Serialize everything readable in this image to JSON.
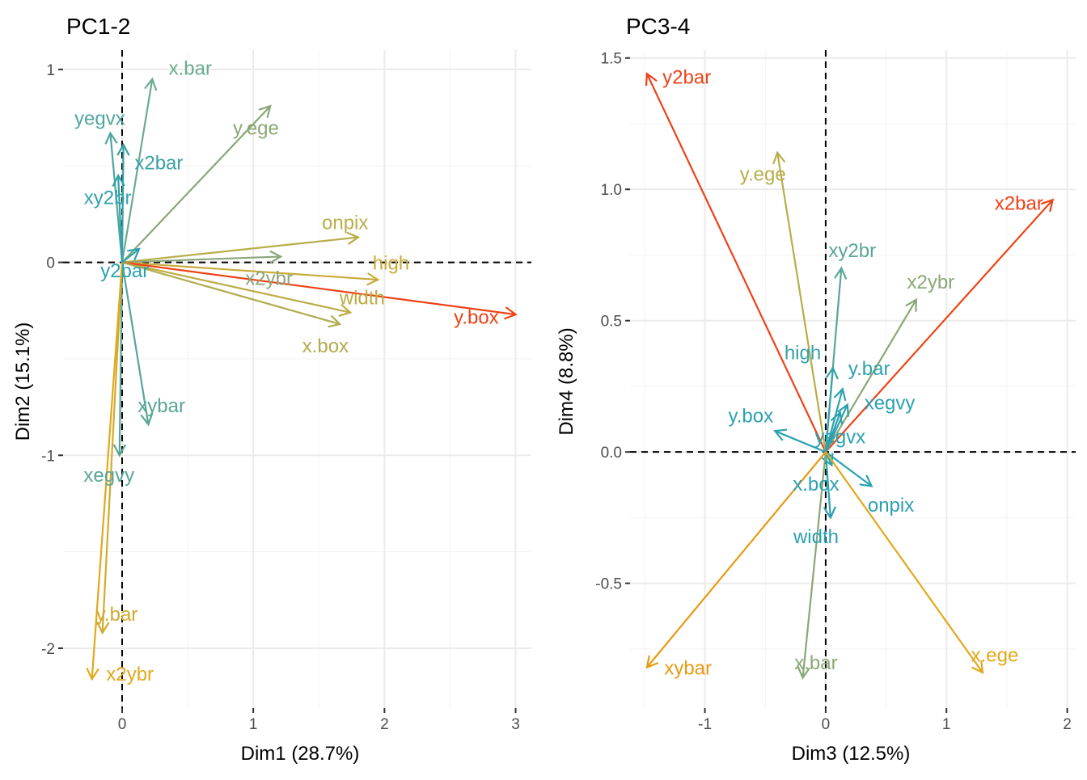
{
  "chart_data": [
    {
      "type": "biplot",
      "title": "PC1-2",
      "xlabel": "Dim1 (28.7%)",
      "ylabel": "Dim2 (15.1%)",
      "xlim": [
        -0.45,
        3.12
      ],
      "ylim": [
        -2.31,
        1.1
      ],
      "xticks": [
        0,
        1,
        2,
        3
      ],
      "xtick_labels": [
        "0",
        "1",
        "2",
        "3"
      ],
      "yticks": [
        -2,
        -1,
        0,
        1
      ],
      "ytick_labels": [
        "-2",
        "-1",
        "0",
        "1"
      ],
      "grid": true,
      "variables": [
        {
          "label": "x.bar",
          "x": 0.23,
          "y": 0.95,
          "lx": 0.52,
          "ly": 1.01,
          "color": "#6aab8e"
        },
        {
          "label": "yegvx",
          "x": -0.09,
          "y": 0.67,
          "lx": -0.17,
          "ly": 0.75,
          "color": "#4fa69e"
        },
        {
          "label": "y.ege",
          "x": 1.13,
          "y": 0.81,
          "lx": 1.02,
          "ly": 0.7,
          "color": "#8aa776"
        },
        {
          "label": "x2bar",
          "x": 0.01,
          "y": 0.61,
          "lx": 0.28,
          "ly": 0.52,
          "color": "#3aa0a5"
        },
        {
          "label": "xy2br",
          "x": -0.03,
          "y": 0.45,
          "lx": -0.11,
          "ly": 0.34,
          "color": "#34a1aa"
        },
        {
          "label": "onpix",
          "x": 1.8,
          "y": 0.13,
          "lx": 1.7,
          "ly": 0.21,
          "color": "#b7ae49"
        },
        {
          "label": "x2ybr",
          "x": 1.21,
          "y": 0.03,
          "lx": 1.12,
          "ly": -0.08,
          "color": "#8ba67a"
        },
        {
          "label": "high",
          "x": 1.95,
          "y": -0.09,
          "lx": 2.05,
          "ly": 0.0,
          "color": "#c8ab38"
        },
        {
          "label": "width",
          "x": 1.74,
          "y": -0.26,
          "lx": 1.83,
          "ly": -0.18,
          "color": "#bcac44"
        },
        {
          "label": "y.box",
          "x": 3.0,
          "y": -0.27,
          "lx": 2.7,
          "ly": -0.28,
          "color": "#ee4216"
        },
        {
          "label": "x.box",
          "x": 1.66,
          "y": -0.32,
          "lx": 1.55,
          "ly": -0.43,
          "color": "#b1ac50"
        },
        {
          "label": "y2bar",
          "x": 0.13,
          "y": 0.07,
          "lx": 0.02,
          "ly": -0.04,
          "color": "#2ba1b0"
        },
        {
          "label": "xybar",
          "x": 0.2,
          "y": -0.84,
          "lx": 0.3,
          "ly": -0.74,
          "color": "#58a597"
        },
        {
          "label": "xegvy",
          "x": -0.02,
          "y": -1.0,
          "lx": -0.1,
          "ly": -1.1,
          "color": "#59a595"
        },
        {
          "label": "y.bar",
          "x": -0.15,
          "y": -1.92,
          "lx": -0.04,
          "ly": -1.82,
          "color": "#d2aa2d"
        },
        {
          "label": "x2ybr",
          "x": -0.23,
          "y": -2.16,
          "lx": 0.06,
          "ly": -2.13,
          "color": "#e2a81b"
        }
      ]
    },
    {
      "type": "biplot",
      "title": "PC3-4",
      "xlabel": "Dim3 (12.5%)",
      "ylabel": "Dim4 (8.8%)",
      "xlim": [
        -1.62,
        2.07
      ],
      "ylim": [
        -0.975,
        1.53
      ],
      "xticks": [
        -1,
        0,
        1,
        2
      ],
      "xtick_labels": [
        "-1",
        "0",
        "1",
        "2"
      ],
      "yticks": [
        -0.5,
        0.0,
        0.5,
        1.0,
        1.5
      ],
      "ytick_labels": [
        "-0.5",
        "0.0",
        "0.5",
        "1.0",
        "1.5"
      ],
      "grid": true,
      "variables": [
        {
          "label": "y2bar",
          "x": -1.48,
          "y": 1.44,
          "lx": -1.15,
          "ly": 1.43,
          "color": "#ee4216"
        },
        {
          "label": "y.ege",
          "x": -0.4,
          "y": 1.14,
          "lx": -0.52,
          "ly": 1.06,
          "color": "#b7ae49"
        },
        {
          "label": "x2bar",
          "x": 1.88,
          "y": 0.96,
          "lx": 1.6,
          "ly": 0.95,
          "color": "#ee4216"
        },
        {
          "label": "xy2br",
          "x": 0.13,
          "y": 0.7,
          "lx": 0.22,
          "ly": 0.77,
          "color": "#5aa598"
        },
        {
          "label": "x2ybr",
          "x": 0.75,
          "y": 0.58,
          "lx": 0.87,
          "ly": 0.65,
          "color": "#8aa776"
        },
        {
          "label": "high",
          "x": 0.06,
          "y": 0.32,
          "lx": -0.19,
          "ly": 0.38,
          "color": "#36a1a8"
        },
        {
          "label": "y.bar",
          "x": 0.14,
          "y": 0.24,
          "lx": 0.36,
          "ly": 0.32,
          "color": "#2ea1ad"
        },
        {
          "label": "xegvy",
          "x": 0.18,
          "y": 0.18,
          "lx": 0.53,
          "ly": 0.19,
          "color": "#2ba1b0"
        },
        {
          "label": "y.box",
          "x": -0.42,
          "y": 0.08,
          "lx": -0.62,
          "ly": 0.14,
          "color": "#2ba1b0"
        },
        {
          "label": "yegvx",
          "x": 0.12,
          "y": 0.15,
          "lx": 0.12,
          "ly": 0.06,
          "color": "#2ba1b0"
        },
        {
          "label": "x.box",
          "x": 0.05,
          "y": -0.05,
          "lx": -0.08,
          "ly": -0.12,
          "color": "#2ba1b0"
        },
        {
          "label": "onpix",
          "x": 0.38,
          "y": -0.13,
          "lx": 0.54,
          "ly": -0.2,
          "color": "#2ba1b0"
        },
        {
          "label": "width",
          "x": 0.04,
          "y": -0.25,
          "lx": -0.08,
          "ly": -0.32,
          "color": "#2ba1b0"
        },
        {
          "label": "x.bar",
          "x": -0.19,
          "y": -0.86,
          "lx": -0.08,
          "ly": -0.8,
          "color": "#8aa776"
        },
        {
          "label": "xybar",
          "x": -1.48,
          "y": -0.82,
          "lx": -1.14,
          "ly": -0.82,
          "color": "#e79a14"
        },
        {
          "label": "x.ege",
          "x": 1.3,
          "y": -0.84,
          "lx": 1.4,
          "ly": -0.77,
          "color": "#e2a81b"
        }
      ]
    }
  ]
}
